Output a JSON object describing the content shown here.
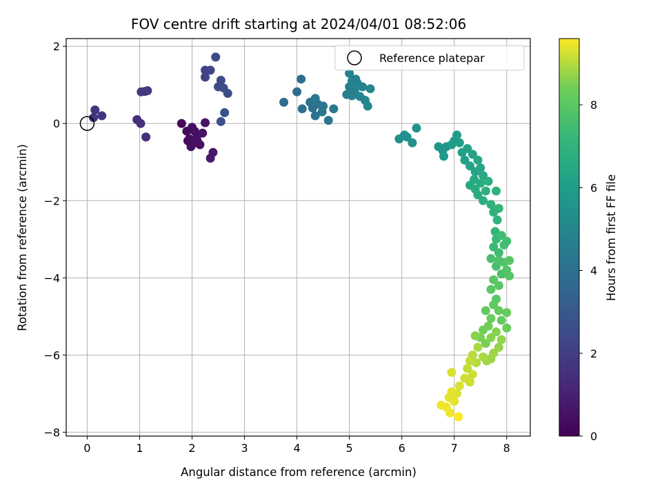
{
  "chart_data": {
    "type": "scatter",
    "title": "FOV centre drift starting at 2024/04/01 08:52:06",
    "xlabel": "Angular distance from reference (arcmin)",
    "ylabel": "Rotation from reference (arcmin)",
    "xlim": [
      -0.4,
      8.45
    ],
    "ylim": [
      -8.1,
      2.2
    ],
    "xticks": [
      0,
      1,
      2,
      3,
      4,
      5,
      6,
      7,
      8
    ],
    "yticks": [
      -8,
      -6,
      -4,
      -2,
      0,
      2
    ],
    "x_tick_labels": [
      "0",
      "1",
      "2",
      "3",
      "4",
      "5",
      "6",
      "7",
      "8"
    ],
    "y_tick_labels": [
      "−8",
      "−6",
      "−4",
      "−2",
      "0",
      "2"
    ],
    "grid": true,
    "legend": {
      "placement": "top-right",
      "entries": [
        "Reference platepar"
      ]
    },
    "reference_point": {
      "x": 0,
      "y": 0
    },
    "colorbar": {
      "label": "Hours from first FF file",
      "colormap": "viridis",
      "range": [
        0,
        9.6
      ],
      "ticks": [
        0,
        2,
        4,
        6,
        8
      ],
      "tick_labels": [
        "0",
        "2",
        "4",
        "6",
        "8"
      ]
    },
    "points": [
      {
        "x": 0.15,
        "y": 0.35,
        "h": 1.6
      },
      {
        "x": 0.12,
        "y": 0.15,
        "h": 1.6
      },
      {
        "x": 0.28,
        "y": 0.2,
        "h": 1.7
      },
      {
        "x": 0.95,
        "y": 0.1,
        "h": 1.5
      },
      {
        "x": 1.02,
        "y": 0.0,
        "h": 1.5
      },
      {
        "x": 1.12,
        "y": -0.35,
        "h": 1.4
      },
      {
        "x": 1.03,
        "y": 0.82,
        "h": 1.8
      },
      {
        "x": 1.1,
        "y": 0.83,
        "h": 1.8
      },
      {
        "x": 1.15,
        "y": 0.85,
        "h": 1.9
      },
      {
        "x": 1.8,
        "y": 0.0,
        "h": 0.2
      },
      {
        "x": 1.9,
        "y": -0.2,
        "h": 0.3
      },
      {
        "x": 1.95,
        "y": -0.4,
        "h": 0.3
      },
      {
        "x": 2.0,
        "y": -0.1,
        "h": 0.4
      },
      {
        "x": 2.05,
        "y": -0.5,
        "h": 0.4
      },
      {
        "x": 2.1,
        "y": -0.3,
        "h": 0.5
      },
      {
        "x": 2.15,
        "y": -0.55,
        "h": 0.5
      },
      {
        "x": 1.98,
        "y": -0.6,
        "h": 0.5
      },
      {
        "x": 2.2,
        "y": -0.25,
        "h": 0.6
      },
      {
        "x": 2.25,
        "y": 0.02,
        "h": 0.6
      },
      {
        "x": 2.05,
        "y": -0.2,
        "h": 0.4
      },
      {
        "x": 1.92,
        "y": -0.45,
        "h": 0.3
      },
      {
        "x": 2.35,
        "y": -0.9,
        "h": 0.8
      },
      {
        "x": 2.4,
        "y": -0.75,
        "h": 0.8
      },
      {
        "x": 2.1,
        "y": -0.45,
        "h": 0.5
      },
      {
        "x": 2.25,
        "y": 1.38,
        "h": 2.2
      },
      {
        "x": 2.25,
        "y": 1.2,
        "h": 2.2
      },
      {
        "x": 2.35,
        "y": 1.38,
        "h": 2.3
      },
      {
        "x": 2.45,
        "y": 1.72,
        "h": 2.4
      },
      {
        "x": 2.5,
        "y": 0.95,
        "h": 2.5
      },
      {
        "x": 2.55,
        "y": 1.12,
        "h": 2.5
      },
      {
        "x": 2.6,
        "y": 0.92,
        "h": 2.6
      },
      {
        "x": 2.68,
        "y": 0.78,
        "h": 2.6
      },
      {
        "x": 2.55,
        "y": 0.05,
        "h": 2.7
      },
      {
        "x": 2.62,
        "y": 0.28,
        "h": 2.7
      },
      {
        "x": 3.75,
        "y": 0.55,
        "h": 3.8
      },
      {
        "x": 4.0,
        "y": 0.82,
        "h": 3.8
      },
      {
        "x": 4.08,
        "y": 1.15,
        "h": 3.9
      },
      {
        "x": 4.1,
        "y": 0.38,
        "h": 3.9
      },
      {
        "x": 4.25,
        "y": 0.55,
        "h": 4.0
      },
      {
        "x": 4.3,
        "y": 0.4,
        "h": 4.0
      },
      {
        "x": 4.35,
        "y": 0.2,
        "h": 4.1
      },
      {
        "x": 4.4,
        "y": 0.5,
        "h": 4.1
      },
      {
        "x": 4.5,
        "y": 0.45,
        "h": 4.2
      },
      {
        "x": 4.35,
        "y": 0.65,
        "h": 4.2
      },
      {
        "x": 4.6,
        "y": 0.08,
        "h": 4.3
      },
      {
        "x": 4.7,
        "y": 0.38,
        "h": 4.3
      },
      {
        "x": 4.48,
        "y": 0.3,
        "h": 4.2
      },
      {
        "x": 4.95,
        "y": 0.75,
        "h": 4.6
      },
      {
        "x": 5.0,
        "y": 0.95,
        "h": 4.6
      },
      {
        "x": 5.0,
        "y": 1.3,
        "h": 4.7
      },
      {
        "x": 5.05,
        "y": 1.1,
        "h": 4.7
      },
      {
        "x": 5.1,
        "y": 0.85,
        "h": 4.8
      },
      {
        "x": 5.15,
        "y": 1.05,
        "h": 4.8
      },
      {
        "x": 5.2,
        "y": 0.7,
        "h": 4.9
      },
      {
        "x": 5.25,
        "y": 0.95,
        "h": 4.9
      },
      {
        "x": 5.3,
        "y": 0.6,
        "h": 5.0
      },
      {
        "x": 5.35,
        "y": 0.45,
        "h": 5.0
      },
      {
        "x": 5.4,
        "y": 0.9,
        "h": 5.0
      },
      {
        "x": 5.12,
        "y": 1.15,
        "h": 4.8
      },
      {
        "x": 5.05,
        "y": 0.72,
        "h": 4.7
      },
      {
        "x": 5.95,
        "y": -0.4,
        "h": 5.3
      },
      {
        "x": 6.05,
        "y": -0.3,
        "h": 5.3
      },
      {
        "x": 6.1,
        "y": -0.35,
        "h": 5.4
      },
      {
        "x": 6.2,
        "y": -0.5,
        "h": 5.4
      },
      {
        "x": 6.28,
        "y": -0.12,
        "h": 5.5
      },
      {
        "x": 6.7,
        "y": -0.6,
        "h": 5.7
      },
      {
        "x": 6.78,
        "y": -0.7,
        "h": 5.7
      },
      {
        "x": 6.8,
        "y": -0.85,
        "h": 5.8
      },
      {
        "x": 6.85,
        "y": -0.6,
        "h": 5.8
      },
      {
        "x": 6.95,
        "y": -0.55,
        "h": 5.9
      },
      {
        "x": 7.0,
        "y": -0.45,
        "h": 5.9
      },
      {
        "x": 7.05,
        "y": -0.3,
        "h": 6.0
      },
      {
        "x": 7.1,
        "y": -0.5,
        "h": 6.0
      },
      {
        "x": 7.15,
        "y": -0.75,
        "h": 6.1
      },
      {
        "x": 7.2,
        "y": -0.95,
        "h": 6.1
      },
      {
        "x": 7.25,
        "y": -0.65,
        "h": 6.2
      },
      {
        "x": 7.3,
        "y": -1.1,
        "h": 6.2
      },
      {
        "x": 7.35,
        "y": -0.8,
        "h": 6.3
      },
      {
        "x": 7.4,
        "y": -1.25,
        "h": 6.3
      },
      {
        "x": 7.45,
        "y": -0.95,
        "h": 6.4
      },
      {
        "x": 7.5,
        "y": -1.15,
        "h": 6.4
      },
      {
        "x": 7.55,
        "y": -1.35,
        "h": 6.5
      },
      {
        "x": 7.3,
        "y": -1.6,
        "h": 6.5
      },
      {
        "x": 7.4,
        "y": -1.7,
        "h": 6.6
      },
      {
        "x": 7.45,
        "y": -1.85,
        "h": 6.6
      },
      {
        "x": 7.5,
        "y": -1.55,
        "h": 6.7
      },
      {
        "x": 7.55,
        "y": -2.0,
        "h": 6.7
      },
      {
        "x": 7.6,
        "y": -1.75,
        "h": 6.8
      },
      {
        "x": 7.65,
        "y": -1.5,
        "h": 6.8
      },
      {
        "x": 7.7,
        "y": -2.1,
        "h": 6.9
      },
      {
        "x": 7.75,
        "y": -2.3,
        "h": 6.9
      },
      {
        "x": 7.8,
        "y": -1.75,
        "h": 7.0
      },
      {
        "x": 7.82,
        "y": -2.5,
        "h": 7.0
      },
      {
        "x": 7.85,
        "y": -2.2,
        "h": 7.1
      },
      {
        "x": 7.78,
        "y": -2.8,
        "h": 7.1
      },
      {
        "x": 7.38,
        "y": -1.45,
        "h": 6.5
      },
      {
        "x": 7.75,
        "y": -3.2,
        "h": 7.3
      },
      {
        "x": 7.8,
        "y": -3.0,
        "h": 7.3
      },
      {
        "x": 7.85,
        "y": -3.35,
        "h": 7.4
      },
      {
        "x": 7.9,
        "y": -2.9,
        "h": 7.4
      },
      {
        "x": 7.95,
        "y": -3.15,
        "h": 7.5
      },
      {
        "x": 8.0,
        "y": -3.05,
        "h": 7.5
      },
      {
        "x": 7.7,
        "y": -3.5,
        "h": 7.6
      },
      {
        "x": 7.8,
        "y": -3.7,
        "h": 7.6
      },
      {
        "x": 7.85,
        "y": -3.55,
        "h": 7.7
      },
      {
        "x": 7.9,
        "y": -3.9,
        "h": 7.7
      },
      {
        "x": 7.95,
        "y": -3.6,
        "h": 7.8
      },
      {
        "x": 8.0,
        "y": -3.8,
        "h": 7.8
      },
      {
        "x": 8.05,
        "y": -3.55,
        "h": 7.9
      },
      {
        "x": 8.05,
        "y": -3.95,
        "h": 7.9
      },
      {
        "x": 7.75,
        "y": -4.05,
        "h": 8.0
      },
      {
        "x": 7.7,
        "y": -4.3,
        "h": 8.0
      },
      {
        "x": 7.8,
        "y": -4.55,
        "h": 8.0
      },
      {
        "x": 7.85,
        "y": -4.2,
        "h": 8.0
      },
      {
        "x": 7.6,
        "y": -4.85,
        "h": 8.1
      },
      {
        "x": 7.75,
        "y": -4.7,
        "h": 8.1
      },
      {
        "x": 7.9,
        "y": -5.1,
        "h": 8.2
      },
      {
        "x": 7.85,
        "y": -4.85,
        "h": 8.2
      },
      {
        "x": 8.0,
        "y": -4.9,
        "h": 8.2
      },
      {
        "x": 8.0,
        "y": -5.3,
        "h": 8.3
      },
      {
        "x": 7.7,
        "y": -5.05,
        "h": 8.3
      },
      {
        "x": 7.65,
        "y": -5.25,
        "h": 8.4
      },
      {
        "x": 7.55,
        "y": -5.35,
        "h": 8.4
      },
      {
        "x": 7.5,
        "y": -5.55,
        "h": 8.5
      },
      {
        "x": 7.6,
        "y": -5.7,
        "h": 8.5
      },
      {
        "x": 7.7,
        "y": -5.55,
        "h": 8.6
      },
      {
        "x": 7.8,
        "y": -5.4,
        "h": 8.6
      },
      {
        "x": 7.85,
        "y": -5.8,
        "h": 8.7
      },
      {
        "x": 7.9,
        "y": -5.6,
        "h": 8.7
      },
      {
        "x": 7.75,
        "y": -5.95,
        "h": 8.8
      },
      {
        "x": 7.7,
        "y": -6.1,
        "h": 8.8
      },
      {
        "x": 7.62,
        "y": -6.15,
        "h": 8.8
      },
      {
        "x": 7.4,
        "y": -5.5,
        "h": 8.6
      },
      {
        "x": 7.45,
        "y": -5.8,
        "h": 8.9
      },
      {
        "x": 7.55,
        "y": -6.05,
        "h": 8.9
      },
      {
        "x": 7.35,
        "y": -6.0,
        "h": 9.0
      },
      {
        "x": 7.42,
        "y": -6.2,
        "h": 9.0
      },
      {
        "x": 7.3,
        "y": -6.15,
        "h": 9.1
      },
      {
        "x": 7.25,
        "y": -6.35,
        "h": 9.1
      },
      {
        "x": 7.35,
        "y": -6.5,
        "h": 9.2
      },
      {
        "x": 7.2,
        "y": -6.6,
        "h": 9.2
      },
      {
        "x": 7.3,
        "y": -6.7,
        "h": 9.2
      },
      {
        "x": 7.1,
        "y": -6.8,
        "h": 9.3
      },
      {
        "x": 7.05,
        "y": -7.0,
        "h": 9.3
      },
      {
        "x": 6.95,
        "y": -6.45,
        "h": 9.3
      },
      {
        "x": 6.95,
        "y": -6.95,
        "h": 9.4
      },
      {
        "x": 7.0,
        "y": -7.2,
        "h": 9.4
      },
      {
        "x": 6.9,
        "y": -7.1,
        "h": 9.4
      },
      {
        "x": 6.75,
        "y": -7.3,
        "h": 9.5
      },
      {
        "x": 6.85,
        "y": -7.35,
        "h": 9.5
      },
      {
        "x": 6.92,
        "y": -7.5,
        "h": 9.5
      },
      {
        "x": 7.08,
        "y": -7.6,
        "h": 9.6
      }
    ]
  }
}
